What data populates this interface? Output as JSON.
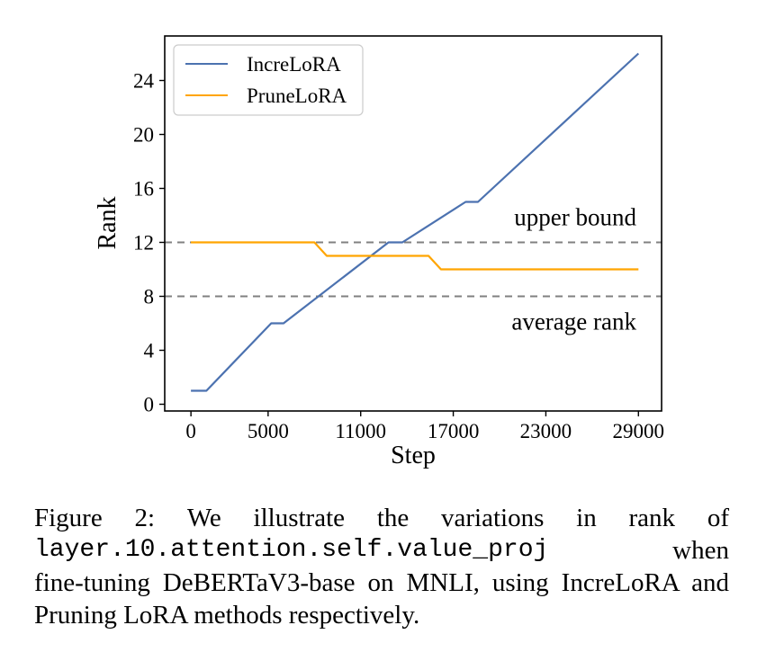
{
  "chart_data": {
    "type": "line",
    "xlabel": "Step",
    "ylabel": "Rank",
    "xlim": [
      -1700,
      30500
    ],
    "ylim": [
      -0.5,
      27.3
    ],
    "xticks": [
      0,
      5000,
      11000,
      17000,
      23000,
      29000
    ],
    "xtick_labels": [
      "0",
      "5000",
      "11000",
      "17000",
      "23000",
      "29000"
    ],
    "yticks": [
      0,
      4,
      8,
      12,
      16,
      20,
      24
    ],
    "ytick_labels": [
      "0",
      "4",
      "8",
      "12",
      "16",
      "20",
      "24"
    ],
    "grid": false,
    "legend_position": "upper-left",
    "series": [
      {
        "name": "IncreLoRA",
        "color": "#4c72b0",
        "x": [
          0,
          1000,
          5200,
          6000,
          12800,
          13700,
          17800,
          18600,
          29000
        ],
        "y": [
          1,
          1,
          6,
          6,
          12,
          12,
          15,
          15,
          26
        ]
      },
      {
        "name": "PruneLoRA",
        "color": "#ffa500",
        "x": [
          0,
          8000,
          8800,
          15400,
          16200,
          29000
        ],
        "y": [
          12,
          12,
          11,
          11,
          10,
          10
        ]
      }
    ],
    "reference_lines": [
      {
        "y": 12,
        "label": "upper bound",
        "color": "#808080",
        "style": "dashed",
        "label_placement": "above"
      },
      {
        "y": 8,
        "label": "average rank",
        "color": "#808080",
        "style": "dashed",
        "label_placement": "below"
      }
    ]
  },
  "caption": {
    "line1_words": [
      "Figure",
      "2:",
      "We",
      "illustrate",
      "the",
      "variations",
      "in",
      "rank",
      "of"
    ],
    "code_text": "layer.10.attention.self.value_proj",
    "after_code": "when",
    "rest": "fine-tuning DeBERTaV3-base on MNLI, using IncreLoRA and Pruning LoRA methods respectively."
  }
}
